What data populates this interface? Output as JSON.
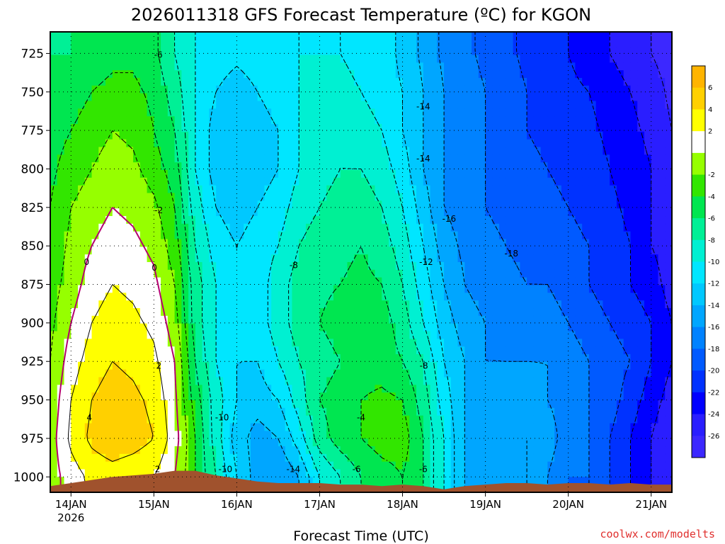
{
  "chart_data": {
    "type": "heatmap",
    "title": "2026011318 GFS Forecast Temperature (ºC) for KGON",
    "xlabel": "Forecast Time (UTC)",
    "ylabel": "",
    "x_ticks": [
      {
        "label": "14JAN",
        "sublabel": "2026",
        "day": 0
      },
      {
        "label": "15JAN",
        "day": 1
      },
      {
        "label": "16JAN",
        "day": 2
      },
      {
        "label": "17JAN",
        "day": 3
      },
      {
        "label": "18JAN",
        "day": 4
      },
      {
        "label": "19JAN",
        "day": 5
      },
      {
        "label": "20JAN",
        "day": 6
      },
      {
        "label": "21JAN",
        "day": 7
      }
    ],
    "xlim": [
      -0.25,
      7.25
    ],
    "y_ticks": [
      725,
      750,
      775,
      800,
      825,
      850,
      875,
      900,
      925,
      950,
      975,
      1000
    ],
    "ylim": [
      1010,
      711
    ],
    "colorbar": {
      "labels": [
        6,
        4,
        2,
        -2,
        -4,
        -6,
        -8,
        -10,
        -12,
        -14,
        -16,
        -18,
        -20,
        -22,
        -24,
        -26
      ],
      "levels": [
        8,
        6,
        4,
        2,
        0,
        -2,
        -4,
        -6,
        -8,
        -10,
        -12,
        -14,
        -16,
        -18,
        -20,
        -22,
        -24,
        -26,
        -28
      ],
      "colors": [
        "#ffb400",
        "#ffd000",
        "#ffff00",
        "#ffffff",
        "#96ff00",
        "#32e600",
        "#00e650",
        "#00f096",
        "#00f0d2",
        "#00e6ff",
        "#00c8ff",
        "#00a6ff",
        "#0082ff",
        "#005aff",
        "#0032ff",
        "#0000ff",
        "#2a1eff",
        "#3c28ff"
      ]
    },
    "grid": true,
    "columns_day": [
      -0.25,
      0.0,
      0.25,
      0.5,
      0.75,
      1.0,
      1.25,
      1.5,
      1.75,
      2.0,
      2.25,
      2.5,
      2.75,
      3.0,
      3.25,
      3.5,
      3.75,
      4.0,
      4.25,
      4.5,
      4.75,
      5.0,
      5.25,
      5.5,
      5.75,
      6.0,
      6.25,
      6.5,
      6.75,
      7.0,
      7.25
    ],
    "levels_hpa": [
      1000,
      975,
      950,
      925,
      900,
      875,
      850,
      825,
      800,
      775,
      750,
      725
    ],
    "temperature": [
      [
        -1.0,
        1.0,
        2.5,
        3.0,
        2.5,
        2.0,
        0.0,
        -4.0,
        -8.0,
        -12.0,
        -15.0,
        -16.0,
        -14.0,
        -10.0,
        -8.0,
        -6.0,
        -5.0,
        -4.0,
        -6.0,
        -10.0,
        -14.0,
        -16.0,
        -15.0,
        -14.0,
        -16.0,
        -18.0,
        -18.0,
        -20.0,
        -22.0,
        -24.0,
        -26.0
      ],
      [
        -1.0,
        2.5,
        4.5,
        5.5,
        5.0,
        4.0,
        1.0,
        -4.0,
        -9.0,
        -13.0,
        -15.0,
        -14.0,
        -11.0,
        -7.0,
        -5.0,
        -4.0,
        -3.0,
        -3.0,
        -6.0,
        -10.0,
        -14.0,
        -15.0,
        -14.0,
        -14.0,
        -15.0,
        -17.0,
        -18.0,
        -20.0,
        -22.0,
        -24.0,
        -26.0
      ],
      [
        -1.5,
        2.0,
        4.0,
        5.0,
        4.5,
        3.5,
        0.5,
        -5.0,
        -9.0,
        -12.0,
        -13.0,
        -12.0,
        -9.0,
        -6.0,
        -5.0,
        -4.0,
        -3.5,
        -4.0,
        -7.0,
        -11.0,
        -14.0,
        -15.0,
        -15.0,
        -15.0,
        -16.0,
        -17.0,
        -18.0,
        -19.0,
        -21.0,
        -23.0,
        -25.0
      ],
      [
        -2.0,
        1.0,
        3.0,
        4.0,
        3.5,
        2.5,
        0.0,
        -6.0,
        -10.0,
        -12.0,
        -12.0,
        -10.0,
        -8.0,
        -7.0,
        -6.0,
        -5.0,
        -5.0,
        -6.0,
        -8.0,
        -12.0,
        -14.0,
        -16.0,
        -16.0,
        -16.0,
        -16.0,
        -17.0,
        -18.0,
        -19.0,
        -20.0,
        -22.0,
        -24.0
      ],
      [
        -2.5,
        0.0,
        2.0,
        3.0,
        2.5,
        1.5,
        -1.0,
        -7.0,
        -10.0,
        -12.0,
        -11.0,
        -9.0,
        -7.0,
        -6.0,
        -5.0,
        -4.5,
        -5.0,
        -7.0,
        -10.0,
        -13.0,
        -15.0,
        -16.0,
        -17.0,
        -17.0,
        -17.0,
        -18.0,
        -19.0,
        -20.0,
        -21.0,
        -22.0,
        -24.0
      ],
      [
        -3.0,
        -1.0,
        1.0,
        2.0,
        1.5,
        0.5,
        -2.0,
        -7.0,
        -10.0,
        -12.0,
        -11.0,
        -9.0,
        -7.0,
        -6.5,
        -6.0,
        -5.5,
        -6.0,
        -8.0,
        -11.0,
        -14.0,
        -16.0,
        -17.0,
        -17.5,
        -18.0,
        -18.0,
        -19.0,
        -20.0,
        -21.0,
        -22.0,
        -23.0,
        -25.0
      ],
      [
        -3.5,
        -1.5,
        0.0,
        1.0,
        0.5,
        -0.5,
        -3.0,
        -8.0,
        -11.0,
        -12.0,
        -11.0,
        -10.0,
        -8.0,
        -7.0,
        -6.5,
        -6.0,
        -7.0,
        -9.0,
        -12.0,
        -15.0,
        -16.5,
        -17.5,
        -18.0,
        -18.5,
        -19.0,
        -19.5,
        -20.0,
        -21.0,
        -22.0,
        -24.0,
        -25.0
      ],
      [
        -4.0,
        -2.0,
        -1.0,
        0.0,
        -0.5,
        -1.5,
        -4.0,
        -9.0,
        -12.0,
        -13.0,
        -12.0,
        -11.0,
        -9.0,
        -8.0,
        -7.0,
        -7.0,
        -8.0,
        -10.0,
        -13.0,
        -16.0,
        -17.0,
        -18.0,
        -18.5,
        -19.0,
        -19.5,
        -20.0,
        -20.5,
        -21.5,
        -22.5,
        -24.0,
        -25.5
      ],
      [
        -4.5,
        -3.0,
        -2.0,
        -1.0,
        -1.5,
        -3.0,
        -5.0,
        -10.0,
        -13.0,
        -14.0,
        -13.0,
        -12.0,
        -10.0,
        -9.0,
        -8.0,
        -8.0,
        -9.0,
        -11.0,
        -14.0,
        -16.0,
        -17.0,
        -18.0,
        -19.0,
        -19.5,
        -20.0,
        -20.5,
        -21.0,
        -22.0,
        -23.0,
        -24.0,
        -26.0
      ],
      [
        -5.0,
        -4.0,
        -3.0,
        -2.0,
        -2.5,
        -4.0,
        -6.0,
        -10.0,
        -13.0,
        -14.0,
        -13.0,
        -12.0,
        -10.0,
        -9.0,
        -8.5,
        -9.0,
        -10.0,
        -12.0,
        -14.0,
        -16.0,
        -17.0,
        -18.0,
        -19.0,
        -20.0,
        -20.5,
        -21.0,
        -21.5,
        -22.5,
        -23.5,
        -24.5,
        -26.0
      ],
      [
        -5.5,
        -5.0,
        -4.0,
        -3.5,
        -3.5,
        -4.5,
        -7.0,
        -10.0,
        -12.0,
        -13.0,
        -12.0,
        -11.0,
        -10.0,
        -9.5,
        -9.5,
        -10.0,
        -11.0,
        -12.0,
        -14.0,
        -16.0,
        -17.0,
        -18.0,
        -19.0,
        -20.0,
        -21.0,
        -21.5,
        -22.0,
        -23.0,
        -24.0,
        -25.0,
        -26.5
      ],
      [
        -6.0,
        -6.0,
        -5.0,
        -4.5,
        -4.5,
        -5.5,
        -8.0,
        -10.0,
        -11.0,
        -11.5,
        -11.0,
        -10.5,
        -10.0,
        -10.0,
        -10.0,
        -10.5,
        -11.0,
        -12.5,
        -14.5,
        -16.5,
        -17.5,
        -18.5,
        -19.5,
        -20.5,
        -21.5,
        -22.0,
        -23.0,
        -24.0,
        -25.0,
        -26.0,
        -27.0
      ]
    ],
    "surface_pressure_hpa": [
      1006,
      1004,
      1002,
      1000,
      999,
      998,
      996,
      996,
      999,
      1001,
      1003,
      1004,
      1004,
      1004,
      1005,
      1005,
      1006,
      1005,
      1006,
      1008,
      1006,
      1005,
      1004,
      1004,
      1005,
      1004,
      1004,
      1005,
      1004,
      1005,
      1005
    ],
    "contour_labels": [
      "-6",
      "-4",
      "-2",
      "0",
      "2",
      "4",
      "-8",
      "-10",
      "-12",
      "-14",
      "-16",
      "-18"
    ],
    "watermark": "coolwx.com/modelts"
  }
}
